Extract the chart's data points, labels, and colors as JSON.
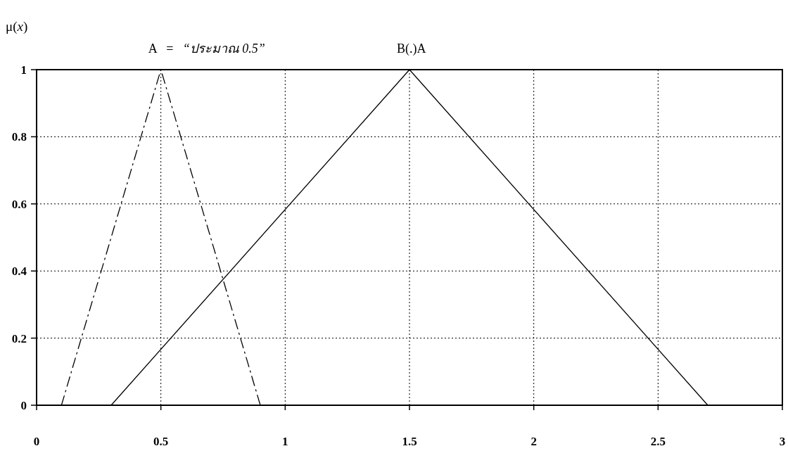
{
  "chart_data": {
    "type": "line",
    "ylabel": "μ(*x*)",
    "xlim": [
      0,
      3
    ],
    "ylim": [
      0,
      1
    ],
    "xticks": [
      0,
      0.5,
      1,
      1.5,
      2,
      2.5,
      3
    ],
    "yticks": [
      0,
      0.2,
      0.4,
      0.6,
      0.8,
      1
    ],
    "grid": true,
    "marker": "none",
    "series": [
      {
        "name": "A   =   *“ประมาณ 0.5”*",
        "color": "#000000",
        "line_style": "dashed",
        "x": [
          0.1,
          0.5,
          0.9
        ],
        "values": [
          0,
          1,
          0
        ]
      },
      {
        "name": "B(.)A",
        "color": "#000000",
        "line_style": "solid",
        "x": [
          0.3,
          1.5,
          2.7
        ],
        "values": [
          0,
          1,
          0
        ]
      }
    ]
  }
}
